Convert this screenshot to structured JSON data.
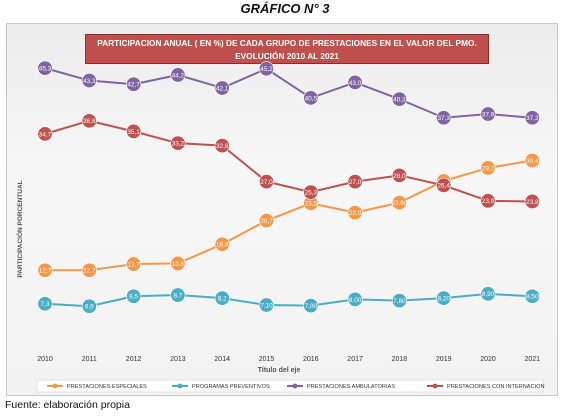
{
  "figure_title": "GRÁFICO N° 3",
  "source": "Fuente: elaboración propia",
  "chart_data": {
    "type": "line",
    "title_line1": "PARTICIPACION ANUAL ( EN %) DE CADA GRUPO DE PRESTACIONES EN EL VALOR DEL PMO.",
    "title_line2": "EVOLUCIÓN 2010 AL 2021",
    "xlabel": "Título del eje",
    "ylabel": "PARTICIPACIÓN PORCENTUAL",
    "categories": [
      "2010",
      "2011",
      "2012",
      "2013",
      "2014",
      "2015",
      "2016",
      "2017",
      "2018",
      "2019",
      "2020",
      "2021"
    ],
    "ylim": [
      0,
      50
    ],
    "grid": false,
    "legend_position": "bottom",
    "series": [
      {
        "name": "PRESTACIONES ESPECIALES",
        "color": "#f79646",
        "values": [
          12.7,
          12.7,
          13.7,
          13.8,
          16.9,
          20.7,
          23.5,
          22.0,
          23.6,
          27.1,
          29.2,
          30.4
        ],
        "labels": [
          "12,7",
          "12,7",
          "13,7",
          "13,8",
          "16,9",
          "20,7",
          "23,5",
          "22,0",
          "23,60",
          "27,1",
          "29,2",
          "30,4"
        ]
      },
      {
        "name": "PROGRAMAS PREVENTIVOS",
        "color": "#4bacc6",
        "values": [
          7.3,
          6.9,
          8.5,
          8.7,
          8.2,
          7.1,
          7.0,
          8.0,
          7.8,
          8.2,
          8.9,
          8.5
        ],
        "labels": [
          "7,3",
          "6,9",
          "8,5",
          "8,7",
          "8,2",
          "7,10",
          "7,00",
          "8,00",
          "7,80",
          "8,20",
          "8,90",
          "8,50"
        ]
      },
      {
        "name": "PRESTACIONES AMBULATORIAS",
        "color": "#8064a2",
        "values": [
          45.3,
          43.3,
          42.7,
          44.2,
          42.1,
          45.2,
          40.5,
          43.0,
          40.3,
          37.3,
          37.9,
          37.3
        ],
        "labels": [
          "45,3",
          "43,3",
          "42,7",
          "44,2",
          "42,1",
          "45,2",
          "40,5",
          "43,0",
          "40,3",
          "37,3",
          "37,9",
          "37,3"
        ]
      },
      {
        "name": "PRESTACIONES CON INTERNACION",
        "color": "#c0504d",
        "values": [
          34.7,
          36.8,
          35.1,
          33.2,
          32.8,
          27.0,
          25.3,
          27.0,
          28.0,
          26.4,
          23.9,
          23.8
        ],
        "labels": [
          "34,7",
          "36,8",
          "35,1",
          "33,2",
          "32,8",
          "27,0",
          "25,3",
          "27,0",
          "28,0",
          "26,4",
          "23,9",
          "23,8"
        ]
      }
    ]
  }
}
